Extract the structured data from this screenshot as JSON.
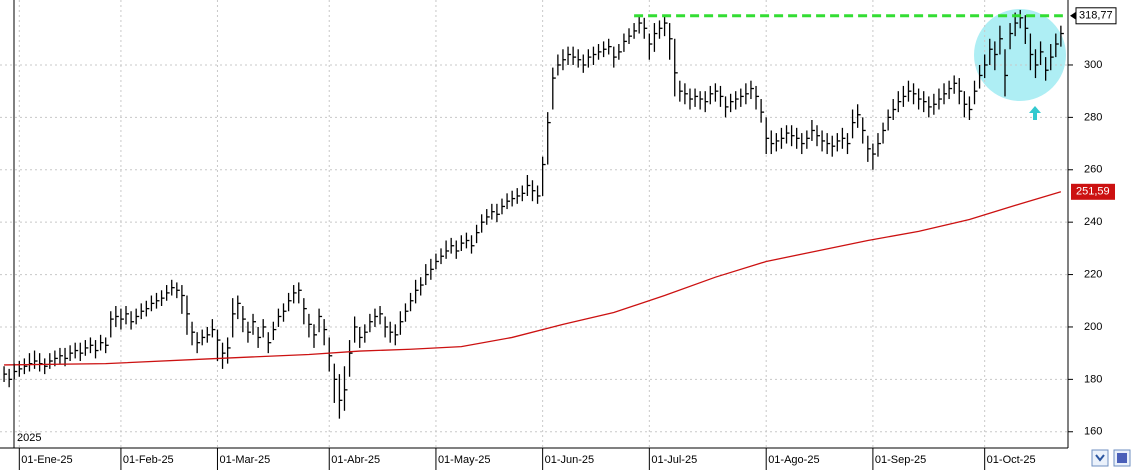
{
  "chart_data": {
    "type": "ohlc",
    "year_label": "2025",
    "xlim": [
      -0.8,
      209.4
    ],
    "ylim": [
      153.8,
      324.8
    ],
    "grid": true,
    "yticks": [
      160,
      180,
      200,
      220,
      240,
      260,
      280,
      300
    ],
    "xticks": [
      {
        "value": 3,
        "label": "01-Ene-25"
      },
      {
        "value": 23,
        "label": "01-Feb-25"
      },
      {
        "value": 42,
        "label": "01-Mar-25"
      },
      {
        "value": 64,
        "label": "01-Abr-25"
      },
      {
        "value": 85,
        "label": "01-May-25"
      },
      {
        "value": 106,
        "label": "01-Jun-25"
      },
      {
        "value": 127,
        "label": "01-Jul-25"
      },
      {
        "value": 150,
        "label": "01-Ago-25"
      },
      {
        "value": 171,
        "label": "01-Sep-25"
      },
      {
        "value": 193,
        "label": "01-Oct-25"
      }
    ],
    "bars": {
      "color": "#000000",
      "high": [
        185,
        184,
        186,
        187,
        188,
        190,
        191,
        190,
        188,
        190,
        191,
        192,
        192,
        193,
        194,
        194,
        195,
        196,
        195,
        197,
        196,
        206,
        208,
        207,
        208,
        206,
        207,
        209,
        210,
        212,
        213,
        214,
        216,
        218,
        217,
        216,
        212,
        202,
        198,
        199,
        200,
        203,
        199,
        194,
        196,
        211,
        212,
        208,
        202,
        205,
        200,
        203,
        198,
        202,
        207,
        209,
        213,
        216,
        217,
        211,
        205,
        201,
        207,
        203,
        196,
        186,
        182,
        185,
        195,
        204,
        200,
        201,
        205,
        207,
        208,
        204,
        202,
        201,
        206,
        209,
        213,
        218,
        219,
        224,
        226,
        228,
        230,
        233,
        234,
        233,
        235,
        236,
        235,
        239,
        243,
        245,
        247,
        247,
        249,
        251,
        252,
        253,
        254,
        258,
        256,
        254,
        265,
        282,
        299,
        304,
        306,
        307,
        307,
        306,
        304,
        306,
        307,
        308,
        309,
        310,
        307,
        308,
        312,
        314,
        316,
        319,
        318,
        312,
        316,
        317,
        319,
        316,
        310,
        294,
        293,
        291,
        291,
        290,
        290,
        292,
        293,
        292,
        288,
        289,
        290,
        291,
        293,
        294,
        292,
        287,
        280,
        275,
        274,
        276,
        277,
        277,
        276,
        274,
        275,
        279,
        277,
        275,
        274,
        273,
        274,
        276,
        274,
        283,
        285,
        280,
        273,
        270,
        274,
        278,
        283,
        287,
        290,
        292,
        294,
        293,
        291,
        290,
        288,
        289,
        291,
        293,
        294,
        296,
        295,
        290,
        288,
        294,
        300,
        304,
        310,
        309,
        315,
        306,
        316,
        320,
        321,
        319,
        312,
        306,
        309,
        303,
        308,
        312,
        315
      ],
      "low": [
        179,
        177,
        180,
        181,
        182,
        183,
        184,
        183,
        182,
        184,
        185,
        186,
        185,
        187,
        188,
        187,
        189,
        190,
        188,
        191,
        190,
        196,
        200,
        199,
        201,
        199,
        201,
        203,
        204,
        206,
        207,
        208,
        210,
        212,
        211,
        205,
        197,
        193,
        190,
        193,
        194,
        196,
        187,
        184,
        186,
        196,
        203,
        198,
        194,
        197,
        192,
        196,
        190,
        195,
        200,
        202,
        206,
        209,
        209,
        201,
        196,
        192,
        198,
        193,
        183,
        171,
        165,
        168,
        181,
        194,
        192,
        194,
        198,
        200,
        201,
        196,
        194,
        193,
        197,
        202,
        206,
        209,
        212,
        216,
        218,
        222,
        224,
        226,
        228,
        226,
        229,
        230,
        228,
        232,
        236,
        239,
        241,
        240,
        243,
        245,
        246,
        247,
        248,
        250,
        248,
        247,
        250,
        262,
        283,
        296,
        298,
        300,
        300,
        299,
        297,
        299,
        300,
        302,
        303,
        304,
        299,
        302,
        305,
        308,
        310,
        312,
        310,
        302,
        305,
        310,
        311,
        302,
        288,
        286,
        285,
        283,
        284,
        283,
        282,
        285,
        286,
        284,
        280,
        282,
        283,
        284,
        285,
        287,
        283,
        278,
        266,
        266,
        267,
        268,
        270,
        269,
        268,
        266,
        268,
        271,
        269,
        267,
        266,
        265,
        267,
        268,
        266,
        272,
        276,
        270,
        263,
        260,
        265,
        270,
        275,
        279,
        282,
        284,
        286,
        285,
        283,
        282,
        280,
        281,
        283,
        285,
        287,
        289,
        285,
        280,
        279,
        285,
        291,
        295,
        300,
        298,
        304,
        288,
        306,
        311,
        314,
        308,
        298,
        295,
        300,
        294,
        298,
        303,
        307
      ],
      "close": [
        182,
        180,
        183,
        184,
        185,
        186,
        187,
        186,
        185,
        187,
        188,
        189,
        188,
        190,
        191,
        190,
        192,
        193,
        191,
        194,
        193,
        203,
        204,
        203,
        205,
        202,
        204,
        206,
        207,
        209,
        210,
        211,
        213,
        215,
        214,
        212,
        205,
        198,
        194,
        196,
        197,
        199,
        195,
        190,
        192,
        205,
        209,
        203,
        198,
        202,
        196,
        200,
        194,
        199,
        204,
        206,
        210,
        213,
        214,
        207,
        201,
        197,
        204,
        199,
        189,
        180,
        172,
        176,
        190,
        200,
        196,
        198,
        202,
        204,
        205,
        200,
        198,
        197,
        202,
        206,
        210,
        214,
        216,
        220,
        222,
        225,
        227,
        229,
        231,
        229,
        232,
        233,
        231,
        236,
        240,
        242,
        244,
        243,
        246,
        248,
        249,
        250,
        251,
        254,
        252,
        250,
        262,
        278,
        295,
        300,
        302,
        304,
        303,
        302,
        300,
        303,
        304,
        305,
        306,
        307,
        303,
        305,
        309,
        311,
        313,
        316,
        314,
        308,
        312,
        314,
        316,
        310,
        297,
        290,
        289,
        287,
        288,
        287,
        286,
        289,
        290,
        288,
        284,
        286,
        287,
        288,
        289,
        291,
        288,
        282,
        272,
        270,
        271,
        272,
        274,
        273,
        272,
        270,
        272,
        275,
        273,
        271,
        270,
        269,
        271,
        272,
        270,
        278,
        281,
        275,
        268,
        266,
        270,
        275,
        280,
        283,
        286,
        288,
        290,
        289,
        287,
        286,
        284,
        285,
        287,
        289,
        291,
        293,
        290,
        285,
        283,
        290,
        296,
        300,
        306,
        304,
        310,
        296,
        312,
        316,
        318,
        314,
        304,
        300,
        305,
        298,
        303,
        308,
        312
      ]
    },
    "moving_average": {
      "color": "#cc1111",
      "x": [
        0,
        20,
        40,
        60,
        70,
        80,
        90,
        100,
        110,
        120,
        130,
        140,
        150,
        160,
        170,
        180,
        190,
        200,
        208
      ],
      "values": [
        185.5,
        186,
        187.8,
        189.5,
        190.8,
        191.5,
        192.5,
        196,
        201,
        205.5,
        212,
        219,
        225,
        229,
        233,
        236.5,
        241,
        247,
        251.59
      ],
      "end_label": "251,59"
    },
    "level": {
      "value": 318.77,
      "label": "318,77",
      "color": "#33dd33",
      "x_start": 124
    }
  }
}
